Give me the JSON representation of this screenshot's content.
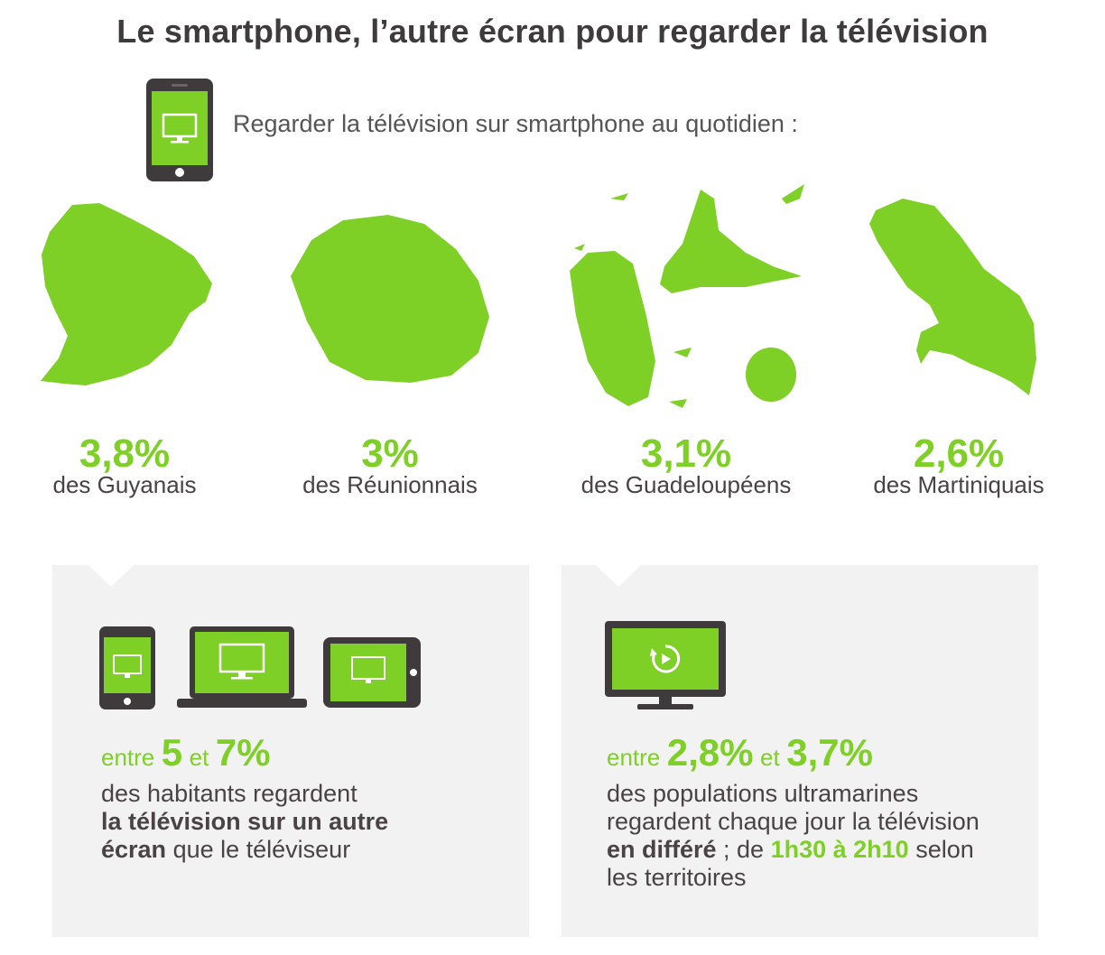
{
  "title": "Le smartphone, l’autre écran pour regarder la télévision",
  "subtitle": "Regarder la télévision sur smartphone au quotidien :",
  "colors": {
    "green": "#7ecf26",
    "dark": "#3f3a3b",
    "card_bg": "#f2f2f2"
  },
  "territories": [
    {
      "pct": "3,8%",
      "label": "des Guyanais",
      "value": 3.8
    },
    {
      "pct": "3%",
      "label": "des Réunionnais",
      "value": 3
    },
    {
      "pct": "3,1%",
      "label": "des Guadeloupéens",
      "value": 3.1
    },
    {
      "pct": "2,6%",
      "label": "des Martiniquais",
      "value": 2.6
    }
  ],
  "cards": {
    "left": {
      "icons": [
        "smartphone-icon",
        "laptop-icon",
        "tablet-icon"
      ],
      "entre": "entre",
      "v1": "5",
      "et": "et",
      "v2": "7%",
      "line1": "des habitants regardent",
      "bold": "la télévision sur un autre",
      "bold2": "écran",
      "rest": " que le téléviseur"
    },
    "right": {
      "icons": [
        "tv-replay-icon"
      ],
      "entre": "entre",
      "v1": "2,8%",
      "et": "et",
      "v2": "3,7%",
      "line1": "des populations ultramarines",
      "line2": "regardent chaque jour la télévision",
      "bold": "en différé",
      "mid": " ; de ",
      "highlight": "1h30 à 2h10",
      "end": " selon",
      "line4": "les territoires"
    }
  }
}
